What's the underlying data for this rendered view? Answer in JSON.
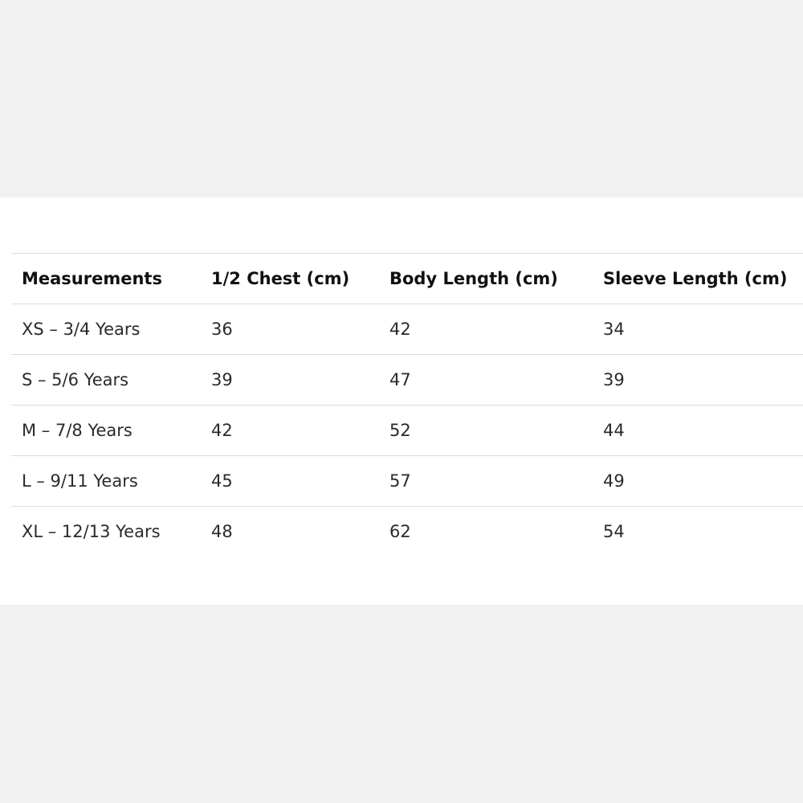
{
  "table": {
    "headers": [
      "Measurements",
      "1/2 Chest (cm)",
      "Body Length (cm)",
      "Sleeve Length (cm)"
    ],
    "rows": [
      [
        "XS – 3/4 Years",
        "36",
        "42",
        "34"
      ],
      [
        "S – 5/6 Years",
        "39",
        "47",
        "39"
      ],
      [
        "M – 7/8 Years",
        "42",
        "52",
        "44"
      ],
      [
        "L – 9/11 Years",
        "45",
        "57",
        "49"
      ],
      [
        "XL – 12/13 Years",
        "48",
        "62",
        "54"
      ]
    ]
  }
}
